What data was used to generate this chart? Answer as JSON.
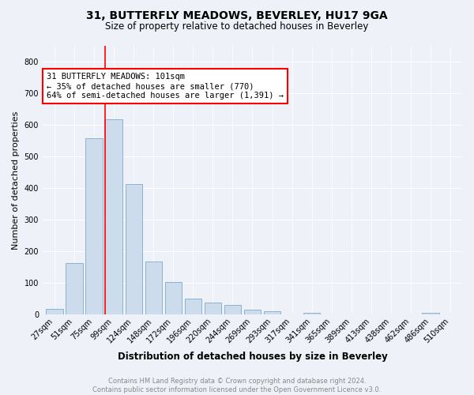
{
  "title": "31, BUTTERFLY MEADOWS, BEVERLEY, HU17 9GA",
  "subtitle": "Size of property relative to detached houses in Beverley",
  "xlabel": "Distribution of detached houses by size in Beverley",
  "ylabel": "Number of detached properties",
  "bar_color": "#ccdcec",
  "bar_edge_color": "#7aabcc",
  "categories": [
    "27sqm",
    "51sqm",
    "75sqm",
    "99sqm",
    "124sqm",
    "148sqm",
    "172sqm",
    "196sqm",
    "220sqm",
    "244sqm",
    "269sqm",
    "293sqm",
    "317sqm",
    "341sqm",
    "365sqm",
    "389sqm",
    "413sqm",
    "438sqm",
    "462sqm",
    "486sqm",
    "510sqm"
  ],
  "values": [
    18,
    163,
    558,
    618,
    413,
    168,
    103,
    52,
    38,
    30,
    15,
    10,
    0,
    5,
    0,
    0,
    0,
    0,
    0,
    7,
    0
  ],
  "ylim": [
    0,
    850
  ],
  "yticks": [
    0,
    100,
    200,
    300,
    400,
    500,
    600,
    700,
    800
  ],
  "vline_index": 3,
  "annotation_text": "31 BUTTERFLY MEADOWS: 101sqm\n← 35% of detached houses are smaller (770)\n64% of semi-detached houses are larger (1,391) →",
  "annotation_box_color": "white",
  "annotation_box_edge_color": "red",
  "vline_color": "red",
  "footer_text": "Contains HM Land Registry data © Crown copyright and database right 2024.\nContains public sector information licensed under the Open Government Licence v3.0.",
  "background_color": "#eef2f8",
  "grid_color": "white",
  "title_fontsize": 10,
  "subtitle_fontsize": 8.5,
  "ylabel_fontsize": 8,
  "xlabel_fontsize": 8.5,
  "tick_fontsize": 7,
  "annot_fontsize": 7.5,
  "footer_fontsize": 6
}
